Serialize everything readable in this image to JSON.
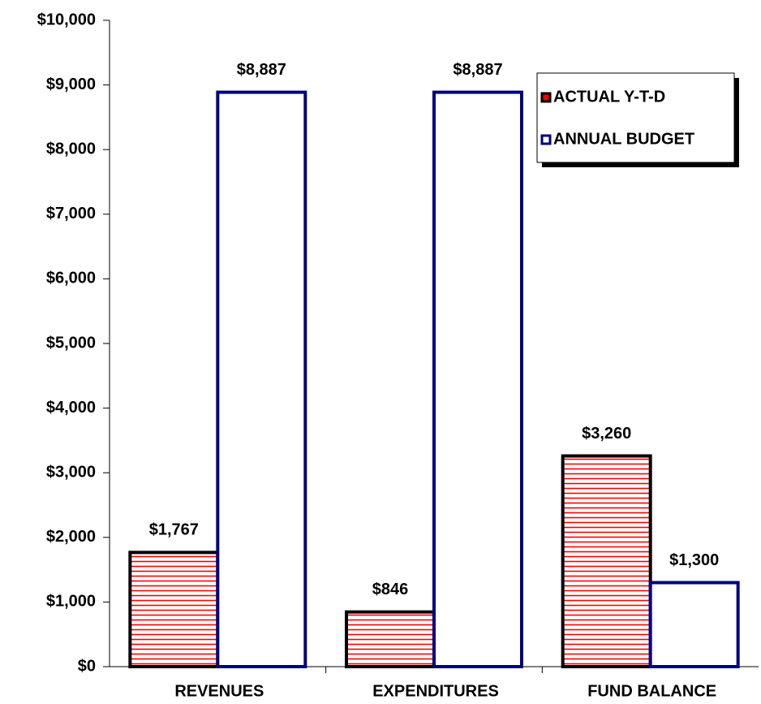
{
  "chart_data": {
    "type": "bar",
    "categories": [
      "REVENUES",
      "EXPENDITURES",
      "FUND BALANCE"
    ],
    "series": [
      {
        "name": "ACTUAL Y-T-D",
        "color": "#ff0000",
        "edgecolor": "#000000",
        "values": [
          1767,
          846,
          3260
        ],
        "value_labels": [
          "$1,767",
          "$846",
          "$3,260"
        ]
      },
      {
        "name": "ANNUAL BUDGET",
        "color": "#ffffff",
        "edgecolor": "#000080",
        "values": [
          8887,
          8887,
          1300
        ],
        "value_labels": [
          "$8,887",
          "$8,887",
          "$1,300"
        ]
      }
    ],
    "ylim": [
      0,
      10000
    ],
    "yticks": [
      {
        "value": 0,
        "label": "$0"
      },
      {
        "value": 1000,
        "label": "$1,000"
      },
      {
        "value": 2000,
        "label": "$2,000"
      },
      {
        "value": 3000,
        "label": "$3,000"
      },
      {
        "value": 4000,
        "label": "$4,000"
      },
      {
        "value": 5000,
        "label": "$5,000"
      },
      {
        "value": 6000,
        "label": "$6,000"
      },
      {
        "value": 7000,
        "label": "$7,000"
      },
      {
        "value": 8000,
        "label": "$8,000"
      },
      {
        "value": 9000,
        "label": "$9,000"
      },
      {
        "value": 10000,
        "label": "$10,000"
      }
    ],
    "legend": "upper right"
  }
}
